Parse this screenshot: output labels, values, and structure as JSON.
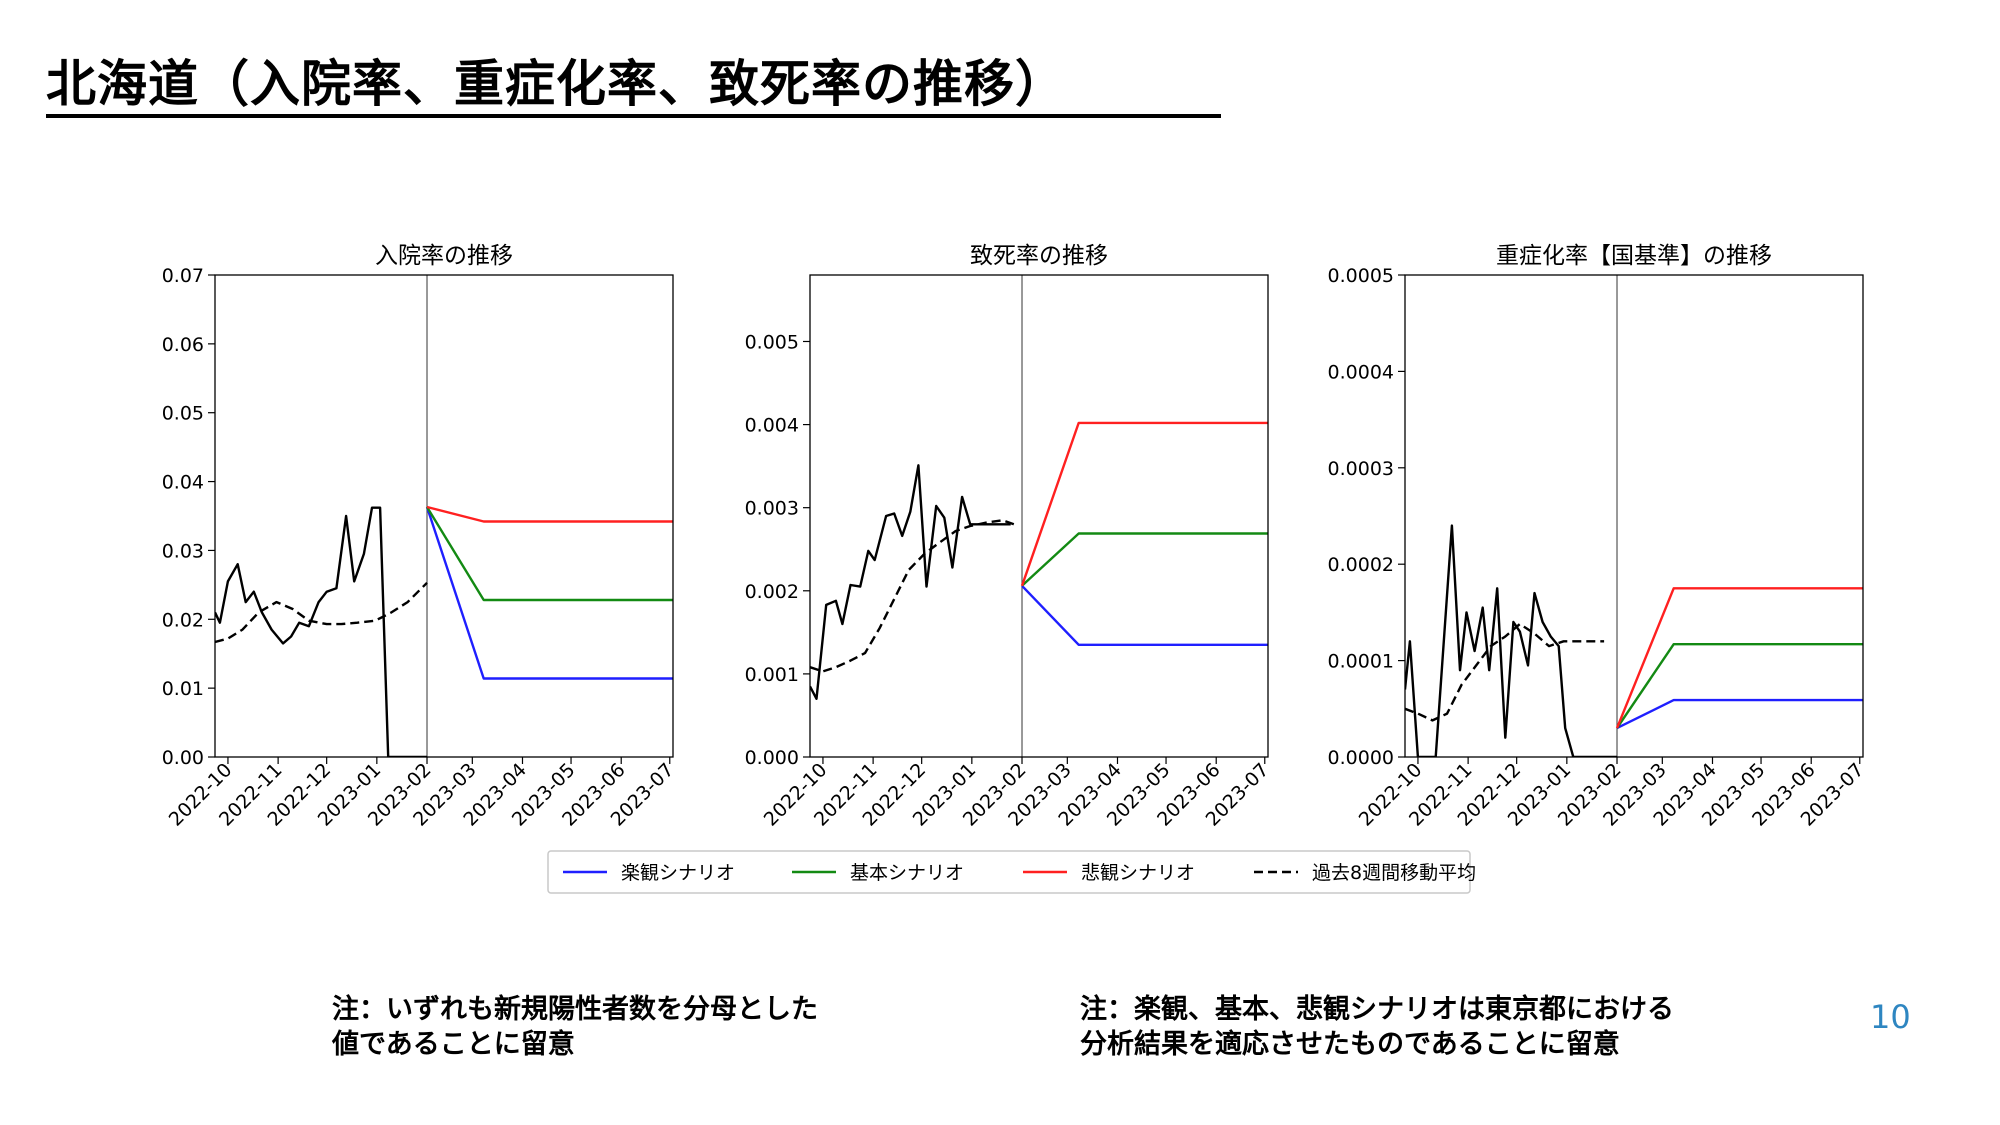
{
  "slide": {
    "title": "北海道（入院率、重症化率、致死率の推移）",
    "page_number": "10",
    "note_left": [
      "注：いずれも新規陽性者数を分母とした",
      "値であることに留意"
    ],
    "note_right": [
      "注：楽観、基本、悲観シナリオは東京都における",
      "分析結果を適応させたものであることに留意"
    ]
  },
  "legend": [
    {
      "label": "楽観シナリオ",
      "color": "#1f1fff",
      "dash": false
    },
    {
      "label": "基本シナリオ",
      "color": "#138a13",
      "dash": false
    },
    {
      "label": "悲観シナリオ",
      "color": "#ff2020",
      "dash": false
    },
    {
      "label": "過去8週間移動平均",
      "color": "#000000",
      "dash": true
    }
  ],
  "chart_data": [
    {
      "type": "line",
      "title": "入院率の推移",
      "xlabel": "",
      "ylabel": "",
      "xlim": [
        "2022-09-23",
        "2023-07-03"
      ],
      "ylim": [
        0,
        0.07
      ],
      "yticks": [
        "0.00",
        "0.01",
        "0.02",
        "0.03",
        "0.04",
        "0.05",
        "0.06",
        "0.07"
      ],
      "xticks": [
        "2022-10",
        "2022-11",
        "2022-12",
        "2023-01",
        "2023-02",
        "2023-03",
        "2023-04",
        "2023-05",
        "2023-06",
        "2023-07"
      ],
      "vline": "2023-02-01",
      "series": [
        {
          "color": "#000000",
          "dash": false,
          "x": [
            "2022-09-23",
            "2022-09-26",
            "2022-10-01",
            "2022-10-07",
            "2022-10-12",
            "2022-10-17",
            "2022-10-22",
            "2022-10-28",
            "2022-11-04",
            "2022-11-09",
            "2022-11-14",
            "2022-11-20",
            "2022-11-26",
            "2022-12-01",
            "2022-12-07",
            "2022-12-13",
            "2022-12-18",
            "2022-12-24",
            "2022-12-29",
            "2023-01-03",
            "2023-01-08",
            "2023-01-14",
            "2023-01-19",
            "2023-01-25",
            "2023-02-01"
          ],
          "y": [
            0.021,
            0.0195,
            0.0255,
            0.028,
            0.0225,
            0.024,
            0.021,
            0.0185,
            0.0165,
            0.0175,
            0.0195,
            0.019,
            0.0225,
            0.024,
            0.0245,
            0.035,
            0.0255,
            0.0295,
            0.0362,
            0.0362,
            0,
            0,
            0,
            0,
            0
          ]
        },
        {
          "color": "#000000",
          "dash": true,
          "x": [
            "2022-09-23",
            "2022-10-01",
            "2022-10-10",
            "2022-10-20",
            "2022-10-31",
            "2022-11-10",
            "2022-11-20",
            "2022-12-01",
            "2022-12-10",
            "2022-12-20",
            "2022-12-31",
            "2023-01-10",
            "2023-01-20",
            "2023-02-01"
          ],
          "y": [
            0.0167,
            0.0172,
            0.0185,
            0.021,
            0.0225,
            0.0215,
            0.0198,
            0.0193,
            0.0193,
            0.0195,
            0.0198,
            0.021,
            0.0225,
            0.0253
          ]
        },
        {
          "name": "楽観シナリオ",
          "color": "#1f1fff",
          "dash": false,
          "x": [
            "2023-02-01",
            "2023-03-08",
            "2023-07-03"
          ],
          "y": [
            0.0363,
            0.0114,
            0.0114
          ]
        },
        {
          "name": "基本シナリオ",
          "color": "#138a13",
          "dash": false,
          "x": [
            "2023-02-01",
            "2023-03-08",
            "2023-07-03"
          ],
          "y": [
            0.0363,
            0.0228,
            0.0228
          ]
        },
        {
          "name": "悲観シナリオ",
          "color": "#ff2020",
          "dash": false,
          "x": [
            "2023-02-01",
            "2023-03-08",
            "2023-07-03"
          ],
          "y": [
            0.0363,
            0.0342,
            0.0342
          ]
        }
      ]
    },
    {
      "type": "line",
      "title": "致死率の推移",
      "xlabel": "",
      "ylabel": "",
      "xlim": [
        "2022-09-23",
        "2023-07-03"
      ],
      "ylim": [
        0,
        0.0058
      ],
      "yticks": [
        "0.000",
        "0.001",
        "0.002",
        "0.003",
        "0.004",
        "0.005"
      ],
      "xticks": [
        "2022-10",
        "2022-11",
        "2022-12",
        "2023-01",
        "2023-02",
        "2023-03",
        "2023-04",
        "2023-05",
        "2023-06",
        "2023-07"
      ],
      "vline": "2023-02-01",
      "series": [
        {
          "color": "#000000",
          "dash": false,
          "x": [
            "2022-09-23",
            "2022-09-27",
            "2022-10-03",
            "2022-10-09",
            "2022-10-13",
            "2022-10-18",
            "2022-10-24",
            "2022-10-29",
            "2022-11-02",
            "2022-11-09",
            "2022-11-14",
            "2022-11-19",
            "2022-11-24",
            "2022-11-29",
            "2022-12-04",
            "2022-12-10",
            "2022-12-15",
            "2022-12-20",
            "2022-12-26",
            "2022-12-31",
            "2023-01-05",
            "2023-01-11",
            "2023-01-15",
            "2023-01-20",
            "2023-01-25"
          ],
          "y": [
            0.00085,
            0.0007,
            0.00183,
            0.00188,
            0.0016,
            0.00207,
            0.00205,
            0.00248,
            0.00237,
            0.0029,
            0.00293,
            0.00266,
            0.00295,
            0.00351,
            0.00205,
            0.00302,
            0.00288,
            0.00228,
            0.00313,
            0.0028,
            0.0028,
            0.0028,
            0.0028,
            0.0028,
            0.0028
          ]
        },
        {
          "color": "#000000",
          "dash": true,
          "x": [
            "2022-09-23",
            "2022-10-01",
            "2022-10-09",
            "2022-10-18",
            "2022-10-27",
            "2022-11-05",
            "2022-11-14",
            "2022-11-23",
            "2022-12-03",
            "2022-12-12",
            "2022-12-22",
            "2022-12-31",
            "2023-01-10",
            "2023-01-20",
            "2023-01-27"
          ],
          "y": [
            0.00108,
            0.00103,
            0.00108,
            0.00116,
            0.00125,
            0.00155,
            0.0019,
            0.00225,
            0.00245,
            0.00258,
            0.00272,
            0.00278,
            0.00282,
            0.00285,
            0.0028
          ]
        },
        {
          "name": "楽観シナリオ",
          "color": "#1f1fff",
          "dash": false,
          "x": [
            "2023-02-01",
            "2023-03-08",
            "2023-07-03"
          ],
          "y": [
            0.00206,
            0.00135,
            0.00135
          ]
        },
        {
          "name": "基本シナリオ",
          "color": "#138a13",
          "dash": false,
          "x": [
            "2023-02-01",
            "2023-03-08",
            "2023-07-03"
          ],
          "y": [
            0.00206,
            0.00269,
            0.00269
          ]
        },
        {
          "name": "悲観シナリオ",
          "color": "#ff2020",
          "dash": false,
          "x": [
            "2023-02-01",
            "2023-03-08",
            "2023-07-03"
          ],
          "y": [
            0.00206,
            0.00402,
            0.00402
          ]
        }
      ]
    },
    {
      "type": "line",
      "title": "重症化率【国基準】の推移",
      "xlabel": "",
      "ylabel": "",
      "xlim": [
        "2022-09-23",
        "2023-07-03"
      ],
      "ylim": [
        0,
        0.0005
      ],
      "yticks": [
        "0.0000",
        "0.0001",
        "0.0002",
        "0.0003",
        "0.0004",
        "0.0005"
      ],
      "xticks": [
        "2022-10",
        "2022-11",
        "2022-12",
        "2023-01",
        "2023-02",
        "2023-03",
        "2023-04",
        "2023-05",
        "2023-06",
        "2023-07"
      ],
      "vline": "2023-02-01",
      "series": [
        {
          "color": "#000000",
          "dash": false,
          "x": [
            "2022-09-23",
            "2022-09-26",
            "2022-10-01",
            "2022-10-06",
            "2022-10-12",
            "2022-10-17",
            "2022-10-22",
            "2022-10-27",
            "2022-10-31",
            "2022-11-05",
            "2022-11-10",
            "2022-11-14",
            "2022-11-19",
            "2022-11-24",
            "2022-11-29",
            "2022-12-03",
            "2022-12-08",
            "2022-12-12",
            "2022-12-17",
            "2022-12-22",
            "2022-12-27",
            "2022-12-31",
            "2023-01-05",
            "2023-01-10",
            "2023-01-15",
            "2023-01-20",
            "2023-01-26",
            "2023-02-01"
          ],
          "y": [
            7e-05,
            0.00012,
            0.0,
            0.0,
            0.0,
            0.00012,
            0.00024,
            9e-05,
            0.00015,
            0.00011,
            0.000155,
            9e-05,
            0.000175,
            2e-05,
            0.00014,
            0.00013,
            9.5e-05,
            0.00017,
            0.00014,
            0.000125,
            0.000115,
            3e-05,
            0,
            0,
            0,
            0,
            0,
            0
          ]
        },
        {
          "color": "#000000",
          "dash": true,
          "x": [
            "2022-09-23",
            "2022-10-01",
            "2022-10-10",
            "2022-10-19",
            "2022-10-28",
            "2022-11-06",
            "2022-11-15",
            "2022-11-24",
            "2022-12-03",
            "2022-12-12",
            "2022-12-21",
            "2022-12-30",
            "2023-01-08",
            "2023-01-17",
            "2023-01-24"
          ],
          "y": [
            5e-05,
            4.5e-05,
            3.8e-05,
            4.5e-05,
            7.5e-05,
            9.5e-05,
            0.000115,
            0.000125,
            0.000138,
            0.000128,
            0.000115,
            0.00012,
            0.00012,
            0.00012,
            0.00012
          ]
        },
        {
          "name": "楽観シナリオ",
          "color": "#1f1fff",
          "dash": false,
          "x": [
            "2023-02-01",
            "2023-03-08",
            "2023-07-03"
          ],
          "y": [
            3e-05,
            5.9e-05,
            5.9e-05
          ]
        },
        {
          "name": "基本シナリオ",
          "color": "#138a13",
          "dash": false,
          "x": [
            "2023-02-01",
            "2023-03-08",
            "2023-07-03"
          ],
          "y": [
            3e-05,
            0.000117,
            0.000117
          ]
        },
        {
          "name": "悲観シナリオ",
          "color": "#ff2020",
          "dash": false,
          "x": [
            "2023-02-01",
            "2023-03-08",
            "2023-07-03"
          ],
          "y": [
            3e-05,
            0.000175,
            0.000175
          ]
        }
      ]
    }
  ]
}
